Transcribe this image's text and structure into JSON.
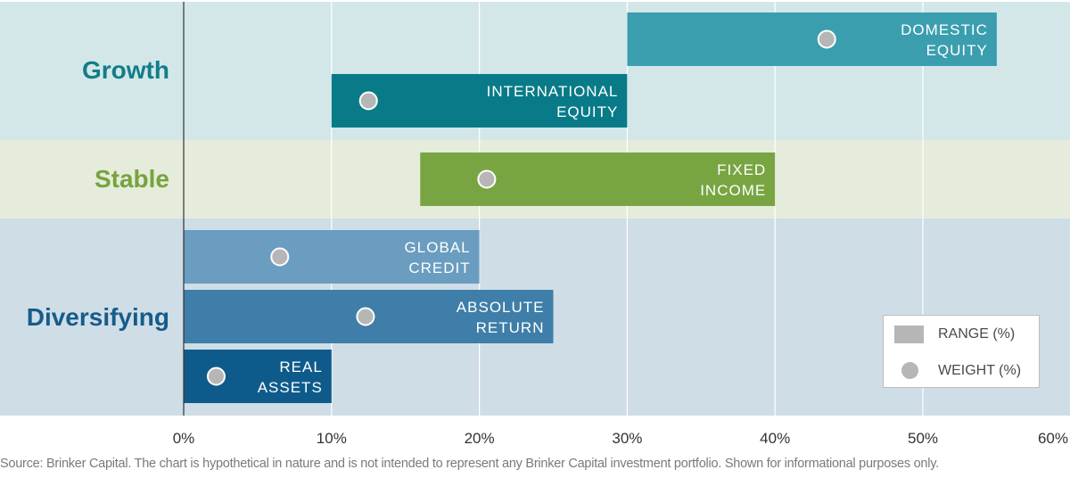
{
  "chart_data": {
    "type": "bar",
    "orientation": "horizontal",
    "variant": "range-with-point",
    "xlim": [
      0,
      60
    ],
    "x_tick_labels": [
      "0%",
      "10%",
      "20%",
      "30%",
      "40%",
      "50%",
      "60%"
    ],
    "grid": true,
    "legend_placement": "bottom-right",
    "legend": {
      "range_label": "RANGE (%)",
      "weight_label": "WEIGHT (%)"
    },
    "groups": [
      {
        "name": "Growth",
        "label_color": "#127d89",
        "band_color": "#d3e7e9",
        "items": [
          {
            "label": [
              "DOMESTIC",
              "EQUITY"
            ],
            "range": [
              30,
              55
            ],
            "weight": 43.5,
            "color": "#3a9eaf"
          },
          {
            "label": [
              "INTERNATIONAL",
              "EQUITY"
            ],
            "range": [
              10,
              30
            ],
            "weight": 12.5,
            "color": "#097b88"
          }
        ]
      },
      {
        "name": "Stable",
        "label_color": "#76a33e",
        "band_color": "#e5ecdb",
        "items": [
          {
            "label": [
              "FIXED",
              "INCOME"
            ],
            "range": [
              16,
              40
            ],
            "weight": 20.5,
            "color": "#78a542"
          }
        ]
      },
      {
        "name": "Diversifying",
        "label_color": "#155c8a",
        "band_color": "#cfdde7",
        "items": [
          {
            "label": [
              "GLOBAL",
              "CREDIT"
            ],
            "range": [
              0,
              20
            ],
            "weight": 6.5,
            "color": "#6a9dc0"
          },
          {
            "label": [
              "ABSOLUTE",
              "RETURN"
            ],
            "range": [
              0,
              25
            ],
            "weight": 12.3,
            "color": "#3e7ea8"
          },
          {
            "label": [
              "REAL",
              "ASSETS"
            ],
            "range": [
              0,
              10
            ],
            "weight": 2.2,
            "color": "#0e5b8b"
          }
        ]
      }
    ],
    "dot_color": "#b6b6b6",
    "source_note": "Source: Brinker Capital. The chart is hypothetical in nature and is not intended to represent any Brinker Capital investment portfolio. Shown for informational purposes only."
  }
}
